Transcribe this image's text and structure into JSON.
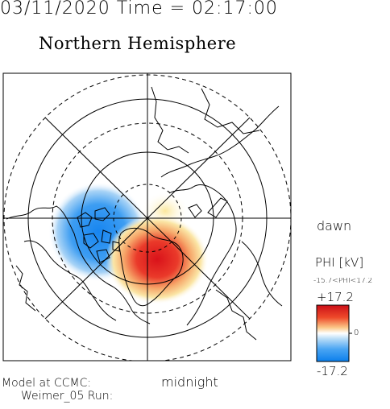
{
  "header": {
    "date": "03/11/2020",
    "time_label": "Time",
    "time": "02:17:00",
    "datetime_text": "03/11/2020 Time = 02:17:00"
  },
  "title": "Northern Hemisphere",
  "map": {
    "projection": "polar stereographic, north pole centered",
    "dawn_label": "dawn",
    "midnight_label": "midnight",
    "field": "electric potential PHI",
    "cells": [
      {
        "sign": "negative",
        "color": "#1f8cf0",
        "sector": "dusk / pre-midnight"
      },
      {
        "sign": "positive",
        "color": "#e8191a",
        "sector": "dawn / post-midnight"
      }
    ]
  },
  "colorbar": {
    "title": "PHI [kV]",
    "range_text": "-15.7<PHI<17.2",
    "max_label": "+17.2",
    "zero_label": "0",
    "min_label": "-17.2",
    "min_value": -17.2,
    "max_value": 17.2,
    "colors": [
      "#1e90ff",
      "#ffffff",
      "#e0201e"
    ]
  },
  "footer": {
    "model_line": "Model at CCMC:",
    "run_line": "Weimer_05 Run:"
  }
}
